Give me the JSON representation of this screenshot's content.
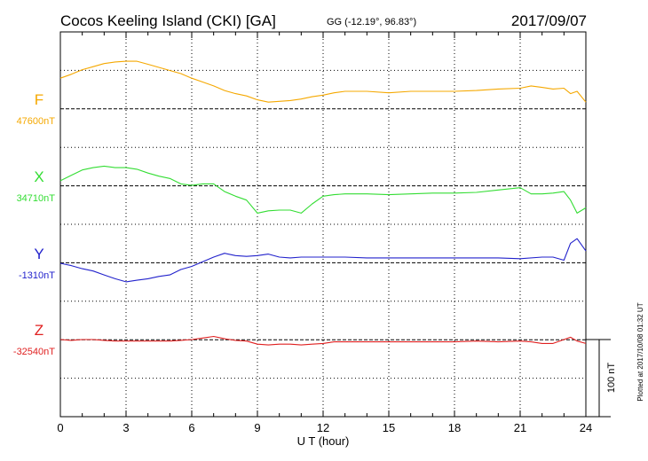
{
  "header": {
    "title": "Cocos Keeling Island (CKI)  [GA]",
    "coords": "GG (-12.19°,  96.83°)",
    "date": "2017/09/07"
  },
  "footer": {
    "plotted": "Plotted at 2017/10/08 01:32 UT",
    "scale_label": "100 nT"
  },
  "chart_data": {
    "type": "line",
    "xlabel": "U T (hour)",
    "xlim": [
      0,
      24
    ],
    "xticks": [
      0,
      3,
      6,
      9,
      12,
      15,
      18,
      21,
      24
    ],
    "y_units_per_grid": 20,
    "scale_bar_nT": 100,
    "grid": true,
    "series": [
      {
        "name": "F",
        "baseline_label": "47600nT",
        "baseline": 47600,
        "color": "#f5a800",
        "x": [
          0,
          0.5,
          1,
          1.5,
          2,
          2.5,
          3,
          3.5,
          4,
          4.5,
          5,
          5.5,
          6,
          6.5,
          7,
          7.5,
          8,
          8.5,
          9,
          9.5,
          10,
          10.5,
          11,
          11.5,
          12,
          12.5,
          13,
          14,
          15,
          16,
          17,
          18,
          19,
          20,
          21,
          21.5,
          22,
          22.5,
          23,
          23.3,
          23.6,
          24
        ],
        "y": [
          47640,
          47645,
          47651,
          47655,
          47659,
          47661,
          47662,
          47662,
          47658,
          47654,
          47650,
          47646,
          47640,
          47635,
          47630,
          47624,
          47620,
          47617,
          47612,
          47609,
          47610,
          47611,
          47613,
          47616,
          47618,
          47621,
          47623,
          47623,
          47621,
          47623,
          47623,
          47623,
          47624,
          47626,
          47627,
          47630,
          47628,
          47626,
          47627,
          47620,
          47623,
          47609
        ]
      },
      {
        "name": "X",
        "baseline_label": "34710nT",
        "baseline": 34710,
        "color": "#33dd33",
        "x": [
          0,
          0.5,
          1,
          1.5,
          2,
          2.5,
          3,
          3.5,
          4,
          4.5,
          5,
          5.5,
          6,
          6.5,
          7,
          7.5,
          8,
          8.5,
          9,
          9.5,
          10,
          10.5,
          11,
          11.5,
          12,
          12.5,
          13,
          14,
          15,
          16,
          17,
          18,
          19,
          20,
          21,
          21.5,
          22,
          22.5,
          23,
          23.3,
          23.6,
          24
        ],
        "y": [
          34717,
          34724,
          34731,
          34734,
          34736,
          34734,
          34734,
          34732,
          34727,
          34723,
          34720,
          34713,
          34711,
          34713,
          34713,
          34703,
          34697,
          34692,
          34675,
          34678,
          34679,
          34679,
          34675,
          34687,
          34697,
          34699,
          34700,
          34700,
          34699,
          34700,
          34701,
          34701,
          34702,
          34705,
          34708,
          34700,
          34700,
          34701,
          34703,
          34692,
          34675,
          34682
        ]
      },
      {
        "name": "Y",
        "baseline_label": "-1310nT",
        "baseline": -1310,
        "color": "#2222cc",
        "x": [
          0,
          0.5,
          1,
          1.5,
          2,
          2.5,
          3,
          3.5,
          4,
          4.5,
          5,
          5.5,
          6,
          6.5,
          7,
          7.5,
          8,
          8.5,
          9,
          9.5,
          10,
          10.5,
          11,
          11.5,
          12,
          13,
          14,
          15,
          16,
          17,
          18,
          19,
          20,
          21,
          22,
          22.5,
          23,
          23.3,
          23.6,
          24
        ],
        "y": [
          -1310,
          -1313,
          -1317,
          -1320,
          -1325,
          -1330,
          -1334,
          -1332,
          -1330,
          -1327,
          -1325,
          -1318,
          -1314,
          -1308,
          -1302,
          -1297,
          -1300,
          -1301,
          -1300,
          -1298,
          -1302,
          -1303,
          -1302,
          -1302,
          -1302,
          -1302,
          -1303,
          -1303,
          -1303,
          -1303,
          -1303,
          -1303,
          -1303,
          -1304,
          -1302,
          -1302,
          -1306,
          -1284,
          -1278,
          -1294
        ]
      },
      {
        "name": "Z",
        "baseline_label": "-32540nT",
        "baseline": -32540,
        "color": "#e02020",
        "x": [
          0,
          0.5,
          1,
          1.5,
          2,
          2.5,
          3,
          3.5,
          4,
          4.5,
          5,
          5.5,
          6,
          6.5,
          7,
          7.5,
          8,
          8.5,
          9,
          9.5,
          10,
          10.5,
          11,
          11.5,
          12,
          12.5,
          13,
          14,
          15,
          16,
          17,
          18,
          19,
          20,
          21,
          21.5,
          22,
          22.5,
          23,
          23.3,
          23.6,
          24
        ],
        "y": [
          -32540,
          -32541,
          -32540,
          -32540,
          -32541,
          -32542,
          -32542,
          -32542,
          -32542,
          -32542,
          -32542,
          -32541,
          -32540,
          -32538,
          -32536,
          -32539,
          -32541,
          -32542,
          -32546,
          -32547,
          -32546,
          -32546,
          -32547,
          -32546,
          -32545,
          -32543,
          -32543,
          -32543,
          -32543,
          -32543,
          -32543,
          -32543,
          -32542,
          -32543,
          -32542,
          -32543,
          -32545,
          -32545,
          -32540,
          -32537,
          -32542,
          -32545
        ]
      }
    ]
  }
}
